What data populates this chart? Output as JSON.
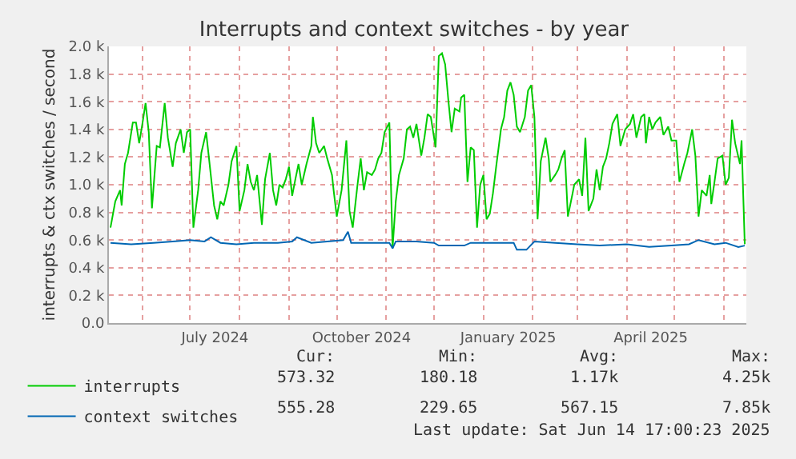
{
  "chart_data": {
    "type": "line",
    "title": "Interrupts and context switches - by year",
    "ylabel": "interrupts & ctx switches / second",
    "xlim": [
      "2024-05-11",
      "2025-06-15"
    ],
    "xticks": [
      {
        "value": "2024-06-01",
        "label": null
      },
      {
        "value": "2024-07-01",
        "label": null
      },
      {
        "value": "2024-08-01",
        "label": null
      },
      {
        "value": "2024-09-01",
        "label": null
      },
      {
        "value": "2024-10-01",
        "label": null
      },
      {
        "value": "2024-11-01",
        "label": null
      },
      {
        "value": "2024-12-01",
        "label": null
      },
      {
        "value": "2025-01-01",
        "label": null
      },
      {
        "value": "2025-02-01",
        "label": null
      },
      {
        "value": "2025-03-01",
        "label": null
      },
      {
        "value": "2025-04-01",
        "label": null
      },
      {
        "value": "2025-05-01",
        "label": null
      },
      {
        "value": "2025-06-01",
        "label": null
      },
      {
        "value": "2024-07-16T12:00",
        "label": "July 2024"
      },
      {
        "value": "2024-10-16T12:00",
        "label": "October 2024"
      },
      {
        "value": "2025-01-16T12:00",
        "label": "January 2025"
      },
      {
        "value": "2025-04-16",
        "label": "April 2025"
      }
    ],
    "ylim": [
      0,
      2
    ],
    "yticks": [
      {
        "value": 0,
        "label": "0.0"
      },
      {
        "value": 0.2,
        "label": "0.2 k"
      },
      {
        "value": 0.4,
        "label": "0.4 k"
      },
      {
        "value": 0.6,
        "label": "0.6 k"
      },
      {
        "value": 0.8,
        "label": "0.8 k"
      },
      {
        "value": 1,
        "label": "1.0 k"
      },
      {
        "value": 1.2,
        "label": "1.2 k"
      },
      {
        "value": 1.4,
        "label": "1.4 k"
      },
      {
        "value": 1.6,
        "label": "1.6 k"
      },
      {
        "value": 1.8,
        "label": "1.8 k"
      },
      {
        "value": 2,
        "label": "2.0 k"
      }
    ],
    "grid": true,
    "legend": "bottom left",
    "marker": "none",
    "line_style": "solid",
    "series": [
      {
        "name": "interrupts",
        "color": "#00cc00",
        "x": [
          "2024-05-12",
          "2024-05-15",
          "2024-05-18",
          "2024-05-19",
          "2024-05-21",
          "2024-05-23",
          "2024-05-26",
          "2024-05-28",
          "2024-05-30",
          "2024-06-01",
          "2024-06-03",
          "2024-06-05",
          "2024-06-07",
          "2024-06-10",
          "2024-06-12",
          "2024-06-15",
          "2024-06-17",
          "2024-06-20",
          "2024-06-22",
          "2024-06-25",
          "2024-06-27",
          "2024-06-29",
          "2024-07-01",
          "2024-07-03",
          "2024-07-06",
          "2024-07-08",
          "2024-07-11",
          "2024-07-13",
          "2024-07-16",
          "2024-07-18",
          "2024-07-20",
          "2024-07-22",
          "2024-07-25",
          "2024-07-27",
          "2024-07-30",
          "2024-08-01",
          "2024-08-04",
          "2024-08-06",
          "2024-08-08",
          "2024-08-10",
          "2024-08-12",
          "2024-08-15",
          "2024-08-17",
          "2024-08-20",
          "2024-08-22",
          "2024-08-24",
          "2024-08-26",
          "2024-08-28",
          "2024-08-30",
          "2024-09-01",
          "2024-09-03",
          "2024-09-05",
          "2024-09-07",
          "2024-09-09",
          "2024-09-12",
          "2024-09-15",
          "2024-09-16",
          "2024-09-18",
          "2024-09-20",
          "2024-09-23",
          "2024-09-25",
          "2024-09-28",
          "2024-09-29",
          "2024-10-01",
          "2024-10-04",
          "2024-10-07",
          "2024-10-09",
          "2024-10-11",
          "2024-10-14",
          "2024-10-16",
          "2024-10-18",
          "2024-10-20",
          "2024-10-23",
          "2024-10-25",
          "2024-10-27",
          "2024-10-29",
          "2024-10-31",
          "2024-11-03",
          "2024-11-05",
          "2024-11-07",
          "2024-11-09",
          "2024-11-12",
          "2024-11-14",
          "2024-11-16",
          "2024-11-18",
          "2024-11-20",
          "2024-11-23",
          "2024-11-25",
          "2024-11-27",
          "2024-11-29",
          "2024-12-02",
          "2024-12-04",
          "2024-12-06",
          "2024-12-08",
          "2024-12-10",
          "2024-12-12",
          "2024-12-14",
          "2024-12-17",
          "2024-12-18",
          "2024-12-20",
          "2024-12-22",
          "2024-12-24",
          "2024-12-26",
          "2024-12-28",
          "2024-12-30",
          "2025-01-01",
          "2025-01-03",
          "2025-01-05",
          "2025-01-07",
          "2025-01-09",
          "2025-01-12",
          "2025-01-14",
          "2025-01-16",
          "2025-01-18",
          "2025-01-20",
          "2025-01-22",
          "2025-01-24",
          "2025-01-27",
          "2025-01-29",
          "2025-01-31",
          "2025-02-02",
          "2025-02-04",
          "2025-02-06",
          "2025-02-09",
          "2025-02-11",
          "2025-02-12",
          "2025-02-15",
          "2025-02-17",
          "2025-02-19",
          "2025-02-21",
          "2025-02-23",
          "2025-02-26",
          "2025-02-27",
          "2025-03-02",
          "2025-03-04",
          "2025-03-06",
          "2025-03-08",
          "2025-03-11",
          "2025-03-13",
          "2025-03-15",
          "2025-03-17",
          "2025-03-19",
          "2025-03-21",
          "2025-03-23",
          "2025-03-26",
          "2025-03-28",
          "2025-03-31",
          "2025-04-03",
          "2025-04-05",
          "2025-04-07",
          "2025-04-10",
          "2025-04-12",
          "2025-04-13",
          "2025-04-15",
          "2025-04-17",
          "2025-04-19",
          "2025-04-22",
          "2025-04-24",
          "2025-04-27",
          "2025-04-29",
          "2025-05-02",
          "2025-05-04",
          "2025-05-07",
          "2025-05-09",
          "2025-05-12",
          "2025-05-14",
          "2025-05-16",
          "2025-05-18",
          "2025-05-21",
          "2025-05-23",
          "2025-05-24",
          "2025-05-26",
          "2025-05-28",
          "2025-05-31",
          "2025-06-02",
          "2025-06-04",
          "2025-06-06",
          "2025-06-08",
          "2025-06-11",
          "2025-06-12",
          "2025-06-14"
        ],
        "values": [
          0.69,
          0.88,
          0.96,
          0.85,
          1.15,
          1.23,
          1.45,
          1.45,
          1.3,
          1.44,
          1.59,
          1.38,
          0.83,
          1.28,
          1.27,
          1.59,
          1.34,
          1.13,
          1.3,
          1.4,
          1.23,
          1.38,
          1.4,
          0.69,
          0.96,
          1.23,
          1.38,
          1.17,
          0.85,
          0.75,
          0.88,
          0.85,
          1.0,
          1.17,
          1.28,
          0.81,
          0.96,
          1.15,
          1.02,
          0.96,
          1.07,
          0.71,
          1.04,
          1.23,
          0.96,
          0.85,
          1.0,
          0.98,
          1.04,
          1.13,
          0.92,
          1.04,
          1.15,
          1.0,
          1.15,
          1.28,
          1.49,
          1.3,
          1.23,
          1.28,
          1.19,
          1.07,
          0.96,
          0.77,
          0.96,
          1.32,
          0.81,
          0.69,
          1.0,
          1.19,
          0.96,
          1.09,
          1.07,
          1.11,
          1.19,
          1.23,
          1.38,
          1.45,
          0.54,
          0.88,
          1.07,
          1.19,
          1.4,
          1.42,
          1.34,
          1.44,
          1.21,
          1.34,
          1.51,
          1.49,
          1.27,
          1.93,
          1.95,
          1.87,
          1.61,
          1.38,
          1.55,
          1.53,
          1.63,
          1.65,
          1.02,
          1.27,
          1.25,
          0.69,
          1.0,
          1.07,
          0.75,
          0.79,
          0.94,
          1.13,
          1.4,
          1.49,
          1.68,
          1.74,
          1.65,
          1.42,
          1.38,
          1.49,
          1.68,
          1.72,
          1.49,
          0.75,
          1.17,
          1.34,
          1.19,
          1.02,
          1.07,
          1.11,
          1.19,
          1.25,
          0.77,
          0.94,
          1.0,
          1.04,
          0.92,
          1.34,
          0.81,
          0.9,
          1.11,
          0.96,
          1.13,
          1.19,
          1.3,
          1.44,
          1.51,
          1.28,
          1.4,
          1.44,
          1.51,
          1.34,
          1.49,
          1.51,
          1.3,
          1.49,
          1.4,
          1.45,
          1.49,
          1.36,
          1.42,
          1.32,
          1.32,
          1.02,
          1.15,
          1.23,
          1.4,
          1.21,
          0.77,
          0.96,
          0.92,
          1.07,
          0.86,
          1.02,
          1.19,
          1.21,
          1.0,
          1.05,
          1.47,
          1.3,
          1.15,
          1.32,
          0.57
        ]
      },
      {
        "name": "context switches",
        "color": "#0066b3",
        "x": [
          "2024-05-12",
          "2024-05-25",
          "2024-06-08",
          "2024-06-20",
          "2024-07-01",
          "2024-07-10",
          "2024-07-14",
          "2024-07-20",
          "2024-07-30",
          "2024-08-10",
          "2024-08-25",
          "2024-09-03",
          "2024-09-06",
          "2024-09-15",
          "2024-09-25",
          "2024-10-05",
          "2024-10-08",
          "2024-10-10",
          "2024-10-20",
          "2024-11-03",
          "2024-11-05",
          "2024-11-07",
          "2024-11-20",
          "2024-12-01",
          "2024-12-04",
          "2024-12-10",
          "2024-12-20",
          "2024-12-24",
          "2025-01-10",
          "2025-01-20",
          "2025-01-22",
          "2025-01-28",
          "2025-02-02",
          "2025-02-15",
          "2025-03-01",
          "2025-03-15",
          "2025-04-01",
          "2025-04-15",
          "2025-04-29",
          "2025-05-10",
          "2025-05-16",
          "2025-05-26",
          "2025-06-02",
          "2025-06-10",
          "2025-06-14"
        ],
        "values": [
          0.58,
          0.57,
          0.58,
          0.59,
          0.6,
          0.59,
          0.62,
          0.58,
          0.57,
          0.58,
          0.58,
          0.59,
          0.62,
          0.58,
          0.59,
          0.6,
          0.66,
          0.58,
          0.58,
          0.58,
          0.54,
          0.59,
          0.59,
          0.58,
          0.56,
          0.56,
          0.56,
          0.58,
          0.58,
          0.58,
          0.53,
          0.53,
          0.59,
          0.58,
          0.57,
          0.56,
          0.57,
          0.55,
          0.56,
          0.57,
          0.6,
          0.57,
          0.58,
          0.55,
          0.56
        ]
      }
    ],
    "annotations": [
      "Cur:",
      "Min:",
      "Avg:",
      "Max:",
      "573.32",
      "180.18",
      "1.17k",
      "4.25k",
      "555.28",
      "229.65",
      "567.15",
      "7.85k",
      "Last update: Sat Jun 14 17:00:23 2025"
    ]
  }
}
